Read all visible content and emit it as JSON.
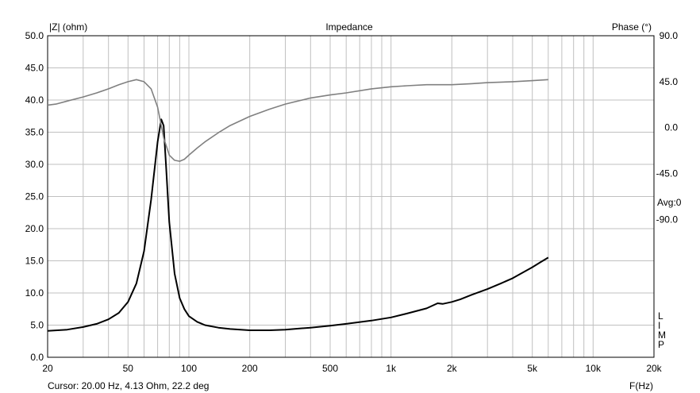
{
  "chart_data": {
    "type": "line",
    "title": "Impedance",
    "ylabel_left": "|Z| (ohm)",
    "ylabel_right": "Phase (°)",
    "xlabel": "F(Hz)",
    "x_scale": "log",
    "xlim": [
      20,
      20000
    ],
    "ylim_left": [
      0,
      50
    ],
    "ylim_right": [
      -225,
      90
    ],
    "grid": true,
    "x_ticks": [
      {
        "value": 20,
        "label": "20"
      },
      {
        "value": 50,
        "label": "50"
      },
      {
        "value": 100,
        "label": "100"
      },
      {
        "value": 200,
        "label": "200"
      },
      {
        "value": 500,
        "label": "500"
      },
      {
        "value": 1000,
        "label": "1k"
      },
      {
        "value": 2000,
        "label": "2k"
      },
      {
        "value": 5000,
        "label": "5k"
      },
      {
        "value": 10000,
        "label": "10k"
      },
      {
        "value": 20000,
        "label": "20k"
      }
    ],
    "y_ticks_left": [
      "0.0",
      "5.0",
      "10.0",
      "15.0",
      "20.0",
      "25.0",
      "30.0",
      "35.0",
      "40.0",
      "45.0",
      "50.0"
    ],
    "y_ticks_right": [
      {
        "value": 90,
        "label": "90.0"
      },
      {
        "value": 45,
        "label": "45.0"
      },
      {
        "value": 0,
        "label": "0.0"
      },
      {
        "value": -45,
        "label": "-45.0"
      },
      {
        "value": -90,
        "label": "-90.0"
      }
    ],
    "avg_label": "Avg:0",
    "side_label": [
      "L",
      "I",
      "M",
      "P"
    ],
    "cursor_text": "Cursor: 20.00 Hz, 4.13 Ohm, 22.2 deg",
    "series": [
      {
        "axis": "left",
        "color": "#000000",
        "x": [
          20,
          25,
          30,
          35,
          40,
          45,
          50,
          55,
          60,
          65,
          70,
          73,
          75,
          77,
          80,
          85,
          90,
          95,
          100,
          110,
          120,
          140,
          160,
          200,
          250,
          300,
          400,
          500,
          600,
          800,
          1000,
          1200,
          1500,
          1700,
          1800,
          2000,
          2200,
          2500,
          3000,
          3500,
          4000,
          4500,
          5000,
          5500,
          6000
        ],
        "y": [
          4.1,
          4.3,
          4.7,
          5.2,
          5.9,
          6.9,
          8.6,
          11.5,
          16.5,
          24.5,
          33.5,
          37.0,
          36.0,
          30.0,
          21.0,
          13.0,
          9.2,
          7.5,
          6.4,
          5.5,
          5.0,
          4.6,
          4.4,
          4.2,
          4.2,
          4.3,
          4.6,
          4.9,
          5.2,
          5.7,
          6.2,
          6.8,
          7.6,
          8.4,
          8.3,
          8.6,
          9.0,
          9.7,
          10.6,
          11.5,
          12.3,
          13.2,
          14.0,
          14.8,
          15.5
        ]
      },
      {
        "axis": "right",
        "color": "#808080",
        "x": [
          20,
          22,
          25,
          30,
          35,
          40,
          45,
          50,
          55,
          60,
          65,
          70,
          73,
          75,
          80,
          85,
          90,
          95,
          100,
          110,
          120,
          140,
          160,
          200,
          250,
          300,
          400,
          500,
          600,
          800,
          1000,
          1200,
          1500,
          2000,
          2500,
          3000,
          4000,
          5000,
          6000
        ],
        "y": [
          22,
          23,
          26,
          30,
          34,
          38,
          42,
          45,
          47,
          45,
          38,
          20,
          2,
          -10,
          -27,
          -32,
          -33,
          -31,
          -27,
          -20,
          -14,
          -5,
          2,
          11,
          18,
          23,
          29,
          32,
          34,
          38,
          40,
          41,
          42,
          42,
          43,
          44,
          45,
          46,
          47
        ]
      }
    ]
  }
}
